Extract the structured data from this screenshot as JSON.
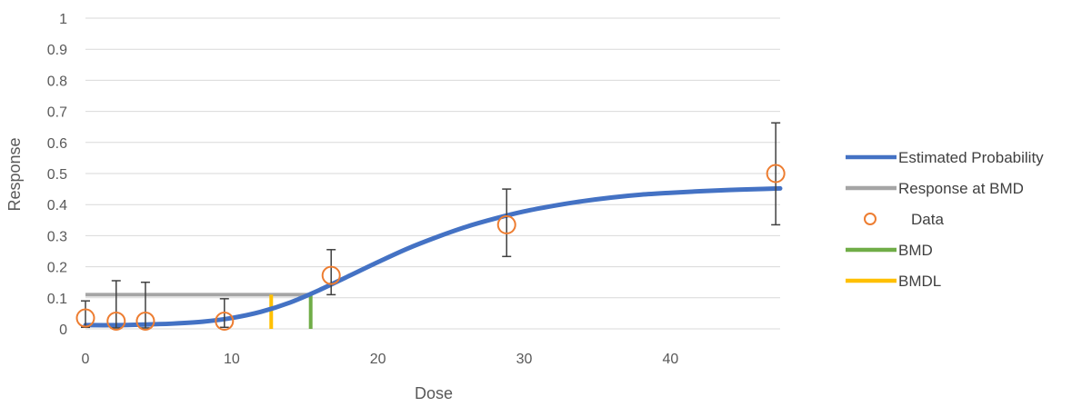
{
  "chart_data": {
    "type": "scatter",
    "title": "",
    "xlabel": "Dose",
    "ylabel": "Response",
    "xlim": [
      0,
      47.5
    ],
    "ylim": [
      0,
      1
    ],
    "x_ticks": [
      0,
      10,
      20,
      30,
      40
    ],
    "y_ticks": [
      0,
      0.1,
      0.2,
      0.3,
      0.4,
      0.5,
      0.6,
      0.7,
      0.8,
      0.9,
      1
    ],
    "y_tick_labels": [
      "0",
      "0.1",
      "0.2",
      "0.3",
      "0.4",
      "0.5",
      "0.6",
      "0.7",
      "0.8",
      "0.9",
      "1"
    ],
    "grid": "horizontal",
    "legend_position": "right",
    "series": [
      {
        "name": "Estimated Probability",
        "kind": "line",
        "color": "#4472C4",
        "x": [
          0,
          2,
          4,
          6,
          8,
          10,
          12,
          14,
          16,
          18,
          20,
          22,
          24,
          26,
          28,
          30,
          32,
          34,
          36,
          38,
          40,
          42,
          44,
          46,
          47.5
        ],
        "y": [
          0.012,
          0.012,
          0.014,
          0.017,
          0.023,
          0.035,
          0.055,
          0.085,
          0.125,
          0.17,
          0.215,
          0.258,
          0.295,
          0.328,
          0.355,
          0.378,
          0.396,
          0.411,
          0.423,
          0.432,
          0.438,
          0.443,
          0.447,
          0.45,
          0.452
        ]
      },
      {
        "name": "Response at BMD",
        "kind": "hline",
        "color": "#A5A5A5",
        "x": [
          0,
          15.4
        ],
        "y": [
          0.11,
          0.11
        ]
      },
      {
        "name": "Data",
        "kind": "markers",
        "color": "#ED7D31",
        "points": [
          {
            "x": 0,
            "y": 0.035,
            "err_low": 0.005,
            "err_high": 0.09
          },
          {
            "x": 2.1,
            "y": 0.025,
            "err_low": 0.003,
            "err_high": 0.155
          },
          {
            "x": 4.1,
            "y": 0.025,
            "err_low": 0.003,
            "err_high": 0.15
          },
          {
            "x": 9.5,
            "y": 0.025,
            "err_low": 0.005,
            "err_high": 0.097
          },
          {
            "x": 16.8,
            "y": 0.172,
            "err_low": 0.11,
            "err_high": 0.255
          },
          {
            "x": 28.8,
            "y": 0.335,
            "err_low": 0.233,
            "err_high": 0.45
          },
          {
            "x": 47.2,
            "y": 0.5,
            "err_low": 0.335,
            "err_high": 0.663
          }
        ]
      },
      {
        "name": "BMD",
        "kind": "vline",
        "color": "#70AD47",
        "x": [
          15.4,
          15.4
        ],
        "y": [
          0,
          0.11
        ]
      },
      {
        "name": "BMDL",
        "kind": "vline",
        "color": "#FFC000",
        "x": [
          12.7,
          12.7
        ],
        "y": [
          0,
          0.11
        ]
      }
    ]
  }
}
